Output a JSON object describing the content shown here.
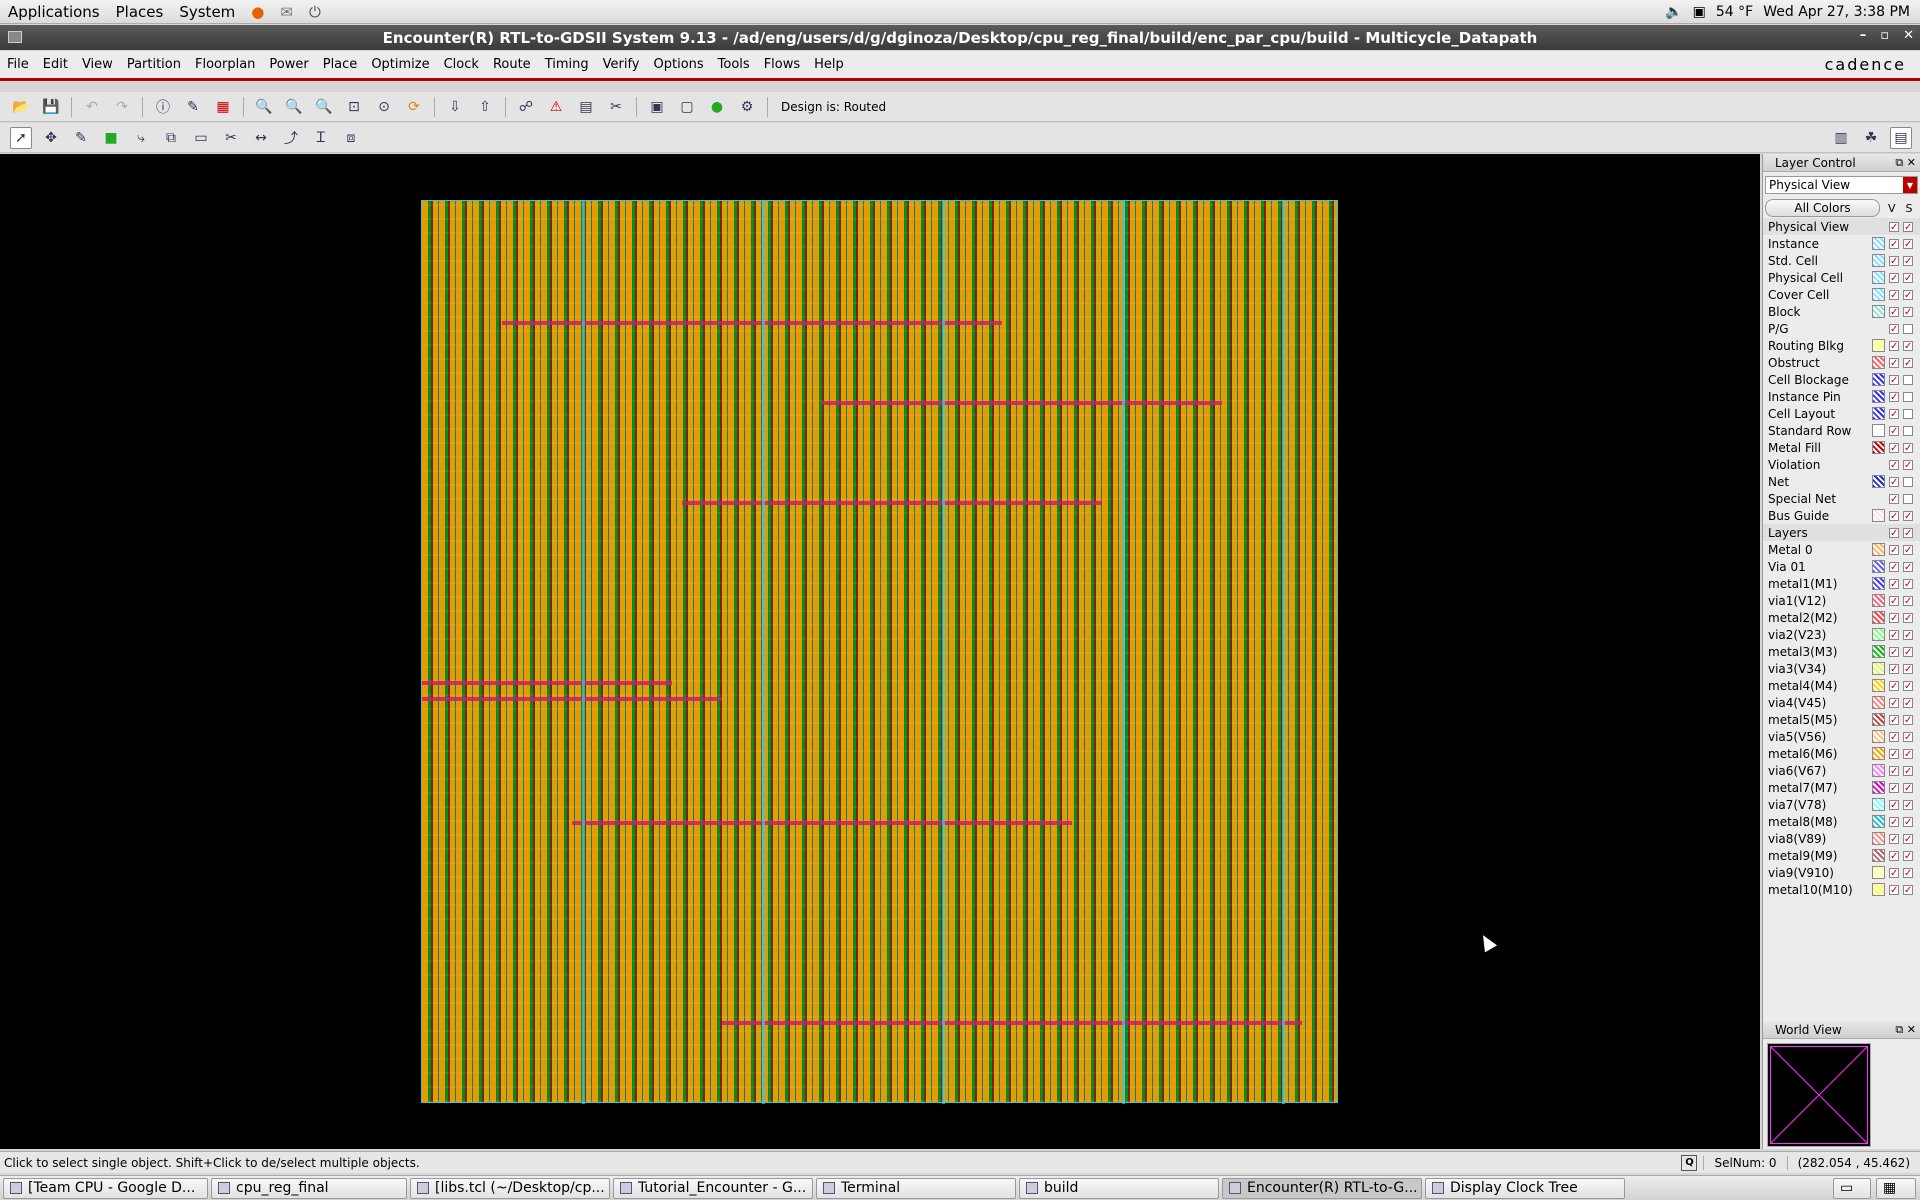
{
  "top_panel": {
    "menus": [
      "Applications",
      "Places",
      "System"
    ],
    "weather": "54 °F",
    "clock": "Wed Apr 27,  3:38 PM"
  },
  "window": {
    "title": "Encounter(R) RTL-to-GDSII System 9.13 - /ad/eng/users/d/g/dginoza/Desktop/cpu_reg_final/build/enc_par_cpu/build - Multicycle_Datapath"
  },
  "menubar": {
    "items": [
      "File",
      "Edit",
      "View",
      "Partition",
      "Floorplan",
      "Power",
      "Place",
      "Optimize",
      "Clock",
      "Route",
      "Timing",
      "Verify",
      "Options",
      "Tools",
      "Flows",
      "Help"
    ],
    "brand": "cadence"
  },
  "toolbar": {
    "design_status": "Design is: Routed"
  },
  "layer_control": {
    "title": "Layer Control",
    "view": "Physical View",
    "all_colors": "All Colors",
    "v_label": "V",
    "s_label": "S",
    "rows": [
      {
        "name": "Physical View",
        "section": true,
        "color": "",
        "v": true,
        "s": true
      },
      {
        "name": "Instance",
        "color": "#7fe0ff",
        "v": true,
        "s": true
      },
      {
        "name": "Std. Cell",
        "color": "#7fe0ff",
        "v": true,
        "s": true
      },
      {
        "name": "Physical Cell",
        "color": "#7fe0ff",
        "v": true,
        "s": true
      },
      {
        "name": "Cover Cell",
        "color": "#7fe0ff",
        "v": true,
        "s": true
      },
      {
        "name": "Block",
        "color": "#90e0e0",
        "v": true,
        "s": true
      },
      {
        "name": "P/G",
        "color": "",
        "v": true,
        "s": false
      },
      {
        "name": "Routing Blkg",
        "color": "#ffff60",
        "v": true,
        "s": true
      },
      {
        "name": "Obstruct",
        "color": "#ff6060",
        "v": true,
        "s": true
      },
      {
        "name": "Cell Blockage",
        "color": "#3030ff",
        "v": true,
        "s": false
      },
      {
        "name": "Instance Pin",
        "color": "#3030ff",
        "v": true,
        "s": false
      },
      {
        "name": "Cell Layout",
        "color": "#3030ff",
        "v": true,
        "s": false
      },
      {
        "name": "Standard Row",
        "color": "#ffffff",
        "v": true,
        "s": false
      },
      {
        "name": "Metal Fill",
        "color": "#d00000",
        "v": true,
        "s": true
      },
      {
        "name": "Violation",
        "color": "",
        "v": true,
        "s": true
      },
      {
        "name": "Net",
        "color": "#2030c0",
        "v": true,
        "s": false
      },
      {
        "name": "Special Net",
        "color": "",
        "v": true,
        "s": false
      },
      {
        "name": "Bus Guide",
        "color": "#ffe0e0",
        "v": true,
        "s": true
      },
      {
        "name": "Layers",
        "section": true,
        "color": "",
        "v": true,
        "s": true
      },
      {
        "name": "Metal 0",
        "color": "#ffb060",
        "v": true,
        "s": true
      },
      {
        "name": "Via 01",
        "color": "#6060ff",
        "v": true,
        "s": true
      },
      {
        "name": "metal1(M1)",
        "color": "#4040ff",
        "v": true,
        "s": true
      },
      {
        "name": "via1(V12)",
        "color": "#ff6080",
        "v": true,
        "s": true
      },
      {
        "name": "metal2(M2)",
        "color": "#ff4040",
        "v": true,
        "s": true
      },
      {
        "name": "via2(V23)",
        "color": "#80ff80",
        "v": true,
        "s": true
      },
      {
        "name": "metal3(M3)",
        "color": "#00c000",
        "v": true,
        "s": true
      },
      {
        "name": "via3(V34)",
        "color": "#d0ff60",
        "v": true,
        "s": true
      },
      {
        "name": "metal4(M4)",
        "color": "#ffd000",
        "v": true,
        "s": true
      },
      {
        "name": "via4(V45)",
        "color": "#ff8080",
        "v": true,
        "s": true
      },
      {
        "name": "metal5(M5)",
        "color": "#c04040",
        "v": true,
        "s": true
      },
      {
        "name": "via5(V56)",
        "color": "#ffc080",
        "v": true,
        "s": true
      },
      {
        "name": "metal6(M6)",
        "color": "#ffa000",
        "v": true,
        "s": true
      },
      {
        "name": "via6(V67)",
        "color": "#ff80ff",
        "v": true,
        "s": true
      },
      {
        "name": "metal7(M7)",
        "color": "#e000c0",
        "v": true,
        "s": true
      },
      {
        "name": "via7(V78)",
        "color": "#80ffff",
        "v": true,
        "s": true
      },
      {
        "name": "metal8(M8)",
        "color": "#20c0d0",
        "v": true,
        "s": true
      },
      {
        "name": "via8(V89)",
        "color": "#ff9090",
        "v": true,
        "s": true
      },
      {
        "name": "metal9(M9)",
        "color": "#c06060",
        "v": true,
        "s": true
      },
      {
        "name": "via9(V910)",
        "color": "#ffff90",
        "v": true,
        "s": true
      },
      {
        "name": "metal10(M10)",
        "color": "#ffff40",
        "v": true,
        "s": true
      }
    ]
  },
  "world_view": {
    "title": "World View"
  },
  "status": {
    "message": "Click to select single object. Shift+Click to de/select multiple objects.",
    "q": "Q",
    "selnum": "SelNum: 0",
    "coords": "(282.054 , 45.462)"
  },
  "taskbar": {
    "tasks": [
      "[Team CPU - Google D...",
      "cpu_reg_final",
      "[libs.tcl (~/Desktop/cp...",
      "Tutorial_Encounter - G...",
      "Terminal",
      "build",
      "Encounter(R) RTL-to-G...",
      "Display Clock Tree"
    ]
  }
}
